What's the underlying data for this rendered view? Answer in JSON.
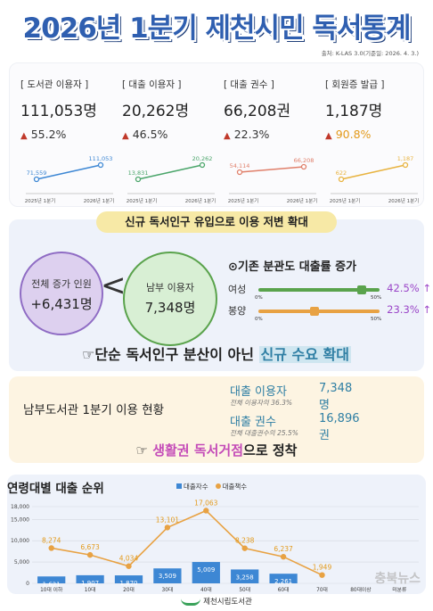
{
  "header": {
    "title": "2026년 1분기 제천시민 독서통계",
    "source": "출처: K-LAS 3.0(기준일: 2026. 4. 3.)"
  },
  "stats": [
    {
      "label": "[ 도서관 이용자 ]",
      "value": "111,053명",
      "change": "55.2%",
      "start": "71,559",
      "end": "111,053",
      "x0": "2025년 1분기",
      "x1": "2026년 1분기",
      "color": "#3d87d4",
      "start_val": 71559,
      "end_val": 111053
    },
    {
      "label": "[ 대출 이용자 ]",
      "value": "20,262명",
      "change": "46.5%",
      "start": "13,831",
      "end": "20,262",
      "x0": "2025년 1분기",
      "x1": "2026년 1분기",
      "color": "#4aa56a",
      "start_val": 13831,
      "end_val": 20262
    },
    {
      "label": "[ 대출 권수 ]",
      "value": "66,208권",
      "change": "22.3%",
      "start": "54,114",
      "end": "66,208",
      "x0": "2025년 1분기",
      "x1": "2026년 1분기",
      "color": "#e07f6a",
      "start_val": 54114,
      "end_val": 66208
    },
    {
      "label": "[ 회원증 발급 ]",
      "value": "1,187명",
      "change": "90.8%",
      "start": "622",
      "end": "1,187",
      "x0": "2025년 1분기",
      "x1": "2026년 1분기",
      "color": "#e8b33f",
      "start_val": 622,
      "end_val": 1187
    }
  ],
  "banner": "신규 독서인구 유입으로 이용 저변 확대",
  "increase": {
    "label": "전체 증가 인원",
    "value": "+6,431명"
  },
  "south_users": {
    "label": "남부 이용자",
    "value": "7,348명"
  },
  "compare": "<",
  "ratio": {
    "title": "⊙기존 분관도 대출률 증가",
    "rows": [
      {
        "name": "여성",
        "min": "0%",
        "max": "50%",
        "pct": "42.5% ↑",
        "color": "#5aa34c",
        "pct_color": "#9b46c8",
        "value": 42.5
      },
      {
        "name": "봉양",
        "min": "0%",
        "max": "50%",
        "pct": "23.3% ↑",
        "color": "#e8a243",
        "pct_color": "#9b46c8",
        "value": 23.3
      }
    ]
  },
  "tagline": {
    "pre": "☞단순 독서인구 분산이 아닌 ",
    "hl": "신규 수요 확대"
  },
  "south": {
    "heading": "남부도서관 1분기 이용 현황",
    "r1_label": "대출 이용자",
    "r1_value": "7,348명",
    "r1_sub": "전체 이용자의 36.3%",
    "r2_label": "대출 권수",
    "r2_value": "16,896권",
    "r2_sub": "전체 대출권수의 25.5%",
    "tag_pre": "☞ ",
    "tag_hl": "생활권 독서거점",
    "tag_post": "으로 정착"
  },
  "chart_data": {
    "type": "bar",
    "title": "연령대별 대출 순위",
    "categories": [
      "10대 이하",
      "10대",
      "20대",
      "30대",
      "40대",
      "50대",
      "60대",
      "70대",
      "80대이상",
      "미분류"
    ],
    "series": [
      {
        "name": "대출자수",
        "type": "bar",
        "values": [
          1621,
          1907,
          1870,
          3509,
          5009,
          3258,
          2261,
          0,
          0,
          0
        ]
      },
      {
        "name": "대출책수",
        "type": "line",
        "values": [
          8274,
          6673,
          4034,
          13101,
          17063,
          8238,
          6237,
          1949,
          null,
          null
        ]
      }
    ],
    "bar_labels": [
      "1,621",
      "1,907",
      "1,870",
      "3,509",
      "5,009",
      "3,258",
      "2,261",
      "",
      "",
      ""
    ],
    "line_labels": [
      "8,274",
      "6,673",
      "4,034",
      "13,101",
      "17,063",
      "8,238",
      "6,237",
      "1,949",
      "",
      ""
    ],
    "yticks": [
      "18,000",
      "15,000",
      "10,000",
      "5,000",
      "0"
    ],
    "ylim": [
      0,
      18000
    ],
    "grid": true,
    "legend": "top"
  },
  "footer": "제천시립도서관",
  "watermark": "충북뉴스"
}
